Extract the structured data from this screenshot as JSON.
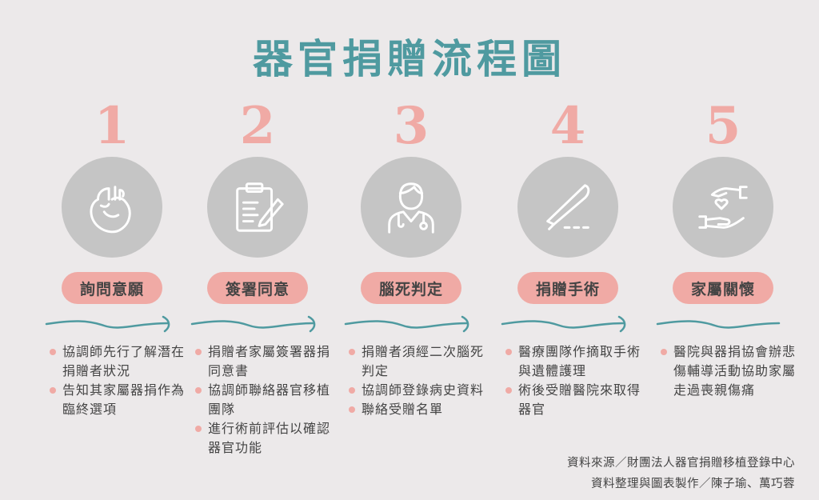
{
  "title": "器官捐贈流程圖",
  "colors": {
    "title": "#4f9aa0",
    "accent": "#f0aaa5",
    "circle": "#c5c5c5",
    "wave": "#4f9aa0"
  },
  "steps": [
    {
      "number": "1",
      "icon": "heart-icon",
      "label": "詢問意願",
      "bullets": [
        "協調師先行了解潛在捐贈者狀況",
        "告知其家屬器捐作為臨終選項"
      ]
    },
    {
      "number": "2",
      "icon": "clipboard-pen-icon",
      "label": "簽署同意",
      "bullets": [
        "捐贈者家屬簽署器捐同意書",
        "協調師聯絡器官移植團隊",
        "進行術前評估以確認器官功能"
      ]
    },
    {
      "number": "3",
      "icon": "doctor-icon",
      "label": "腦死判定",
      "bullets": [
        "捐贈者須經二次腦死判定",
        "協調師登錄病史資料",
        "聯絡受贈名單"
      ]
    },
    {
      "number": "4",
      "icon": "scalpel-icon",
      "label": "捐贈手術",
      "bullets": [
        "醫療團隊作摘取手術與遺體護理",
        "術後受贈醫院來取得器官"
      ]
    },
    {
      "number": "5",
      "icon": "caring-hands-icon",
      "label": "家屬關懷",
      "bullets": [
        "醫院與器捐協會辦悲傷輔導活動協助家屬走過喪親傷痛"
      ]
    }
  ],
  "footer": {
    "source": "資料來源／財團法人器官捐贈移植登錄中心",
    "credit": "資料整理與圖表製作／陳子瑜、萬巧蓉"
  }
}
